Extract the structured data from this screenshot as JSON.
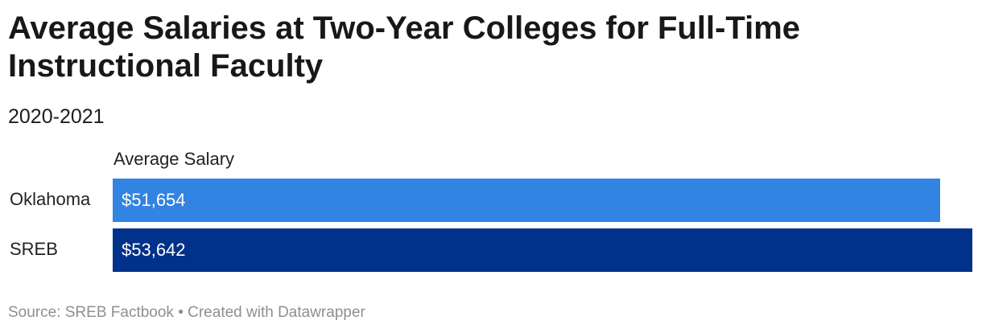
{
  "title": "Average Salaries at Two-Year Colleges for Full-Time Instructional Faculty",
  "subtitle": "2020-2021",
  "footer": "Source: SREB Factbook • Created with Datawrapper",
  "chart_data": {
    "type": "bar",
    "orientation": "horizontal",
    "column_header": "Average Salary",
    "categories": [
      "Oklahoma",
      "SREB"
    ],
    "values": [
      51654,
      53642
    ],
    "value_labels": [
      "$51,654",
      "$53,642"
    ],
    "colors": [
      "#3283e2",
      "#00318b"
    ],
    "xlim": [
      0,
      53642
    ],
    "grid": false,
    "legend": "none"
  }
}
